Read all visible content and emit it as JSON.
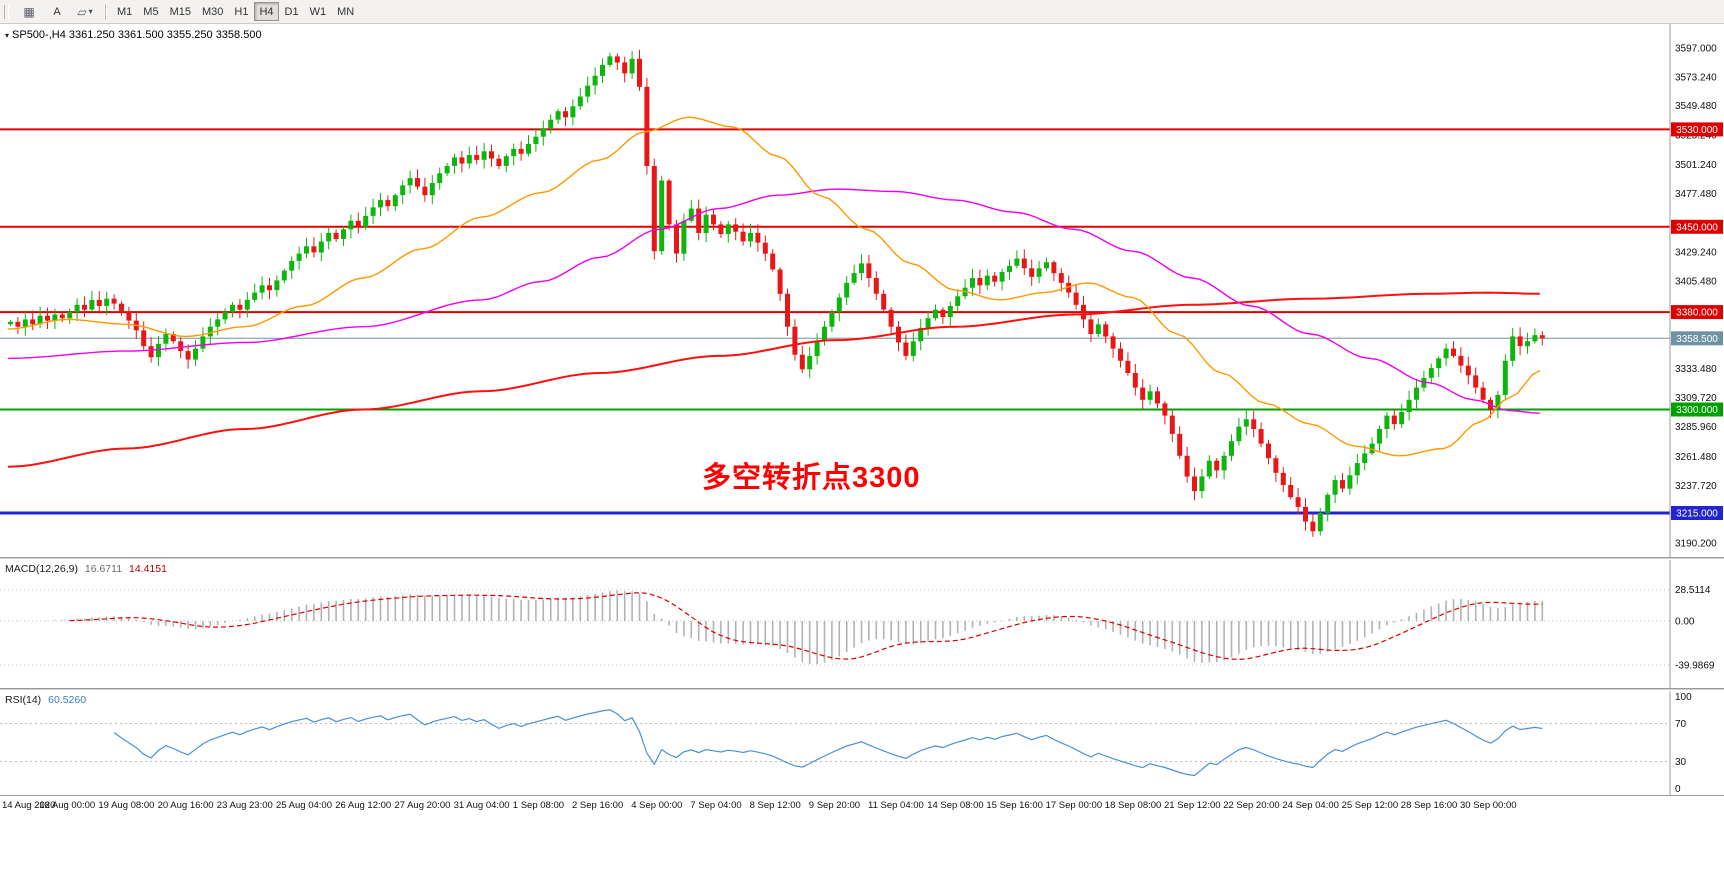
{
  "toolbar": {
    "text_tool_label": "A",
    "timeframes": [
      "M1",
      "M5",
      "M15",
      "M30",
      "H1",
      "H4",
      "D1",
      "W1",
      "MN"
    ],
    "active_timeframe": "H4"
  },
  "header": {
    "symbol_info": "SP500-,H4  3361.250 3361.500 3355.250 3358.500"
  },
  "main_chart": {
    "annotation": "多空转折点3300",
    "annotation_color": "#ff0000",
    "price_range": [
      3183,
      3610
    ],
    "price_axis_labels": [
      "3597.000",
      "3573.240",
      "3549.480",
      "3525.240",
      "3501.240",
      "3477.480",
      "3429.240",
      "3405.480",
      "3333.480",
      "3309.720",
      "3285.960",
      "3261.480",
      "3237.720",
      "3190.200"
    ],
    "levels": [
      {
        "value": 3530,
        "badge": "3530.000",
        "color": "#dd0000",
        "width": 2
      },
      {
        "value": 3450,
        "badge": "3450.000",
        "color": "#dd0000",
        "width": 2
      },
      {
        "value": 3380,
        "badge": "3380.000",
        "color": "#dd0000",
        "width": 2
      },
      {
        "value": 3358.5,
        "badge": "3358.500",
        "color": "#6e93a4",
        "width": 1
      },
      {
        "value": 3300,
        "badge": "3300.000",
        "color": "#00a000",
        "width": 2
      },
      {
        "value": 3215,
        "badge": "3215.000",
        "color": "#2424cc",
        "width": 3
      }
    ]
  },
  "time_axis": {
    "labels": [
      "14 Aug 2020",
      "18 Aug 00:00",
      "19 Aug 08:00",
      "20 Aug 16:00",
      "23 Aug 23:00",
      "25 Aug 04:00",
      "26 Aug 12:00",
      "27 Aug 20:00",
      "31 Aug 04:00",
      "1 Sep 08:00",
      "2 Sep 16:00",
      "4 Sep 00:00",
      "7 Sep 04:00",
      "8 Sep 12:00",
      "9 Sep 20:00",
      "11 Sep 04:00",
      "14 Sep 08:00",
      "15 Sep 16:00",
      "17 Sep 00:00",
      "18 Sep 08:00",
      "21 Sep 12:00",
      "22 Sep 20:00",
      "24 Sep 04:00",
      "25 Sep 12:00",
      "28 Sep 16:00",
      "30 Sep 00:00"
    ]
  },
  "chart_data": {
    "type": "candlestick",
    "symbol": "SP500-",
    "timeframe": "H4",
    "bars": 208,
    "last_ohlc": {
      "open": 3361.25,
      "high": 3361.5,
      "low": 3355.25,
      "close": 3358.5
    },
    "first_open": 3370,
    "closes": [
      3372,
      3368,
      3374,
      3370,
      3377,
      3373,
      3378,
      3375,
      3380,
      3386,
      3382,
      3390,
      3385,
      3391,
      3387,
      3380,
      3373,
      3365,
      3352,
      3343,
      3354,
      3362,
      3356,
      3348,
      3341,
      3350,
      3360,
      3368,
      3374,
      3380,
      3386,
      3382,
      3390,
      3396,
      3402,
      3398,
      3406,
      3414,
      3422,
      3428,
      3434,
      3429,
      3438,
      3445,
      3440,
      3448,
      3455,
      3450,
      3459,
      3466,
      3472,
      3467,
      3476,
      3484,
      3490,
      3483,
      3476,
      3486,
      3494,
      3500,
      3507,
      3502,
      3509,
      3505,
      3512,
      3506,
      3500,
      3508,
      3514,
      3510,
      3518,
      3524,
      3531,
      3538,
      3545,
      3540,
      3549,
      3557,
      3566,
      3574,
      3583,
      3590,
      3585,
      3576,
      3588,
      3565,
      3500,
      3430,
      3488,
      3452,
      3428,
      3455,
      3465,
      3445,
      3460,
      3452,
      3444,
      3452,
      3446,
      3438,
      3445,
      3437,
      3428,
      3415,
      3395,
      3368,
      3345,
      3333,
      3344,
      3356,
      3368,
      3380,
      3392,
      3404,
      3412,
      3420,
      3408,
      3395,
      3382,
      3368,
      3355,
      3344,
      3356,
      3367,
      3375,
      3382,
      3376,
      3385,
      3393,
      3400,
      3408,
      3402,
      3410,
      3405,
      3413,
      3418,
      3424,
      3416,
      3409,
      3416,
      3421,
      3412,
      3404,
      3396,
      3386,
      3374,
      3362,
      3370,
      3360,
      3350,
      3340,
      3330,
      3318,
      3308,
      3315,
      3305,
      3295,
      3280,
      3262,
      3245,
      3233,
      3245,
      3258,
      3250,
      3262,
      3274,
      3286,
      3292,
      3284,
      3272,
      3260,
      3248,
      3238,
      3228,
      3220,
      3208,
      3200,
      3215,
      3230,
      3242,
      3235,
      3246,
      3256,
      3264,
      3272,
      3284,
      3295,
      3288,
      3298,
      3308,
      3318,
      3326,
      3334,
      3342,
      3350,
      3344,
      3336,
      3328,
      3318,
      3308,
      3300,
      3312,
      3340,
      3360,
      3352,
      3356,
      3361,
      3358.5
    ],
    "moving_averages": {
      "red": [
        [
          0,
          3253
        ],
        [
          16,
          3268
        ],
        [
          32,
          3284
        ],
        [
          48,
          3300
        ],
        [
          64,
          3315
        ],
        [
          80,
          3330
        ],
        [
          96,
          3344
        ],
        [
          112,
          3357
        ],
        [
          128,
          3368
        ],
        [
          144,
          3378
        ],
        [
          160,
          3386
        ],
        [
          176,
          3391
        ],
        [
          192,
          3395
        ],
        [
          200,
          3396
        ],
        [
          207,
          3395
        ]
      ],
      "magenta": [
        [
          0,
          3342
        ],
        [
          16,
          3348
        ],
        [
          32,
          3355
        ],
        [
          48,
          3368
        ],
        [
          64,
          3390
        ],
        [
          72,
          3405
        ],
        [
          80,
          3425
        ],
        [
          88,
          3448
        ],
        [
          96,
          3465
        ],
        [
          104,
          3476
        ],
        [
          112,
          3481
        ],
        [
          120,
          3479
        ],
        [
          128,
          3472
        ],
        [
          136,
          3462
        ],
        [
          144,
          3448
        ],
        [
          152,
          3430
        ],
        [
          160,
          3408
        ],
        [
          168,
          3385
        ],
        [
          176,
          3362
        ],
        [
          184,
          3342
        ],
        [
          192,
          3322
        ],
        [
          198,
          3308
        ],
        [
          203,
          3299
        ],
        [
          207,
          3297
        ]
      ],
      "orange": [
        [
          0,
          3366
        ],
        [
          8,
          3374
        ],
        [
          16,
          3370
        ],
        [
          24,
          3360
        ],
        [
          32,
          3368
        ],
        [
          40,
          3385
        ],
        [
          48,
          3408
        ],
        [
          56,
          3432
        ],
        [
          64,
          3458
        ],
        [
          72,
          3478
        ],
        [
          80,
          3505
        ],
        [
          86,
          3528
        ],
        [
          92,
          3540
        ],
        [
          98,
          3532
        ],
        [
          104,
          3508
        ],
        [
          110,
          3475
        ],
        [
          116,
          3448
        ],
        [
          122,
          3420
        ],
        [
          128,
          3398
        ],
        [
          134,
          3390
        ],
        [
          140,
          3396
        ],
        [
          146,
          3404
        ],
        [
          152,
          3392
        ],
        [
          158,
          3362
        ],
        [
          164,
          3330
        ],
        [
          170,
          3305
        ],
        [
          176,
          3288
        ],
        [
          182,
          3270
        ],
        [
          188,
          3262
        ],
        [
          194,
          3268
        ],
        [
          199,
          3290
        ],
        [
          203,
          3310
        ],
        [
          207,
          3332
        ]
      ]
    },
    "indicators": {
      "macd": {
        "label": "MACD(12,26,9)",
        "value_main": "16.6711",
        "value_signal": "14.4151",
        "axis_labels": [
          "28.5114",
          "0.00",
          "-39.9869"
        ],
        "axis_values": [
          28.5114,
          0,
          -39.9869
        ]
      },
      "rsi": {
        "label": "RSI(14)",
        "value": "60.5260",
        "axis_labels": [
          "100",
          "70",
          "30",
          "0"
        ],
        "axis_values": [
          100,
          70,
          30,
          0
        ],
        "levels": [
          70,
          30
        ]
      }
    },
    "colors": {
      "up": "#0db50d",
      "down": "#e81717",
      "ma_orange": "#ff9900",
      "ma_magenta": "#ee00ee",
      "ma_red": "#ff0f0f",
      "macd_hist": "#b2b2b2",
      "macd_signal": "#dd0000",
      "rsi_line": "#4a90d9",
      "current_price": "#6e93a4"
    }
  }
}
